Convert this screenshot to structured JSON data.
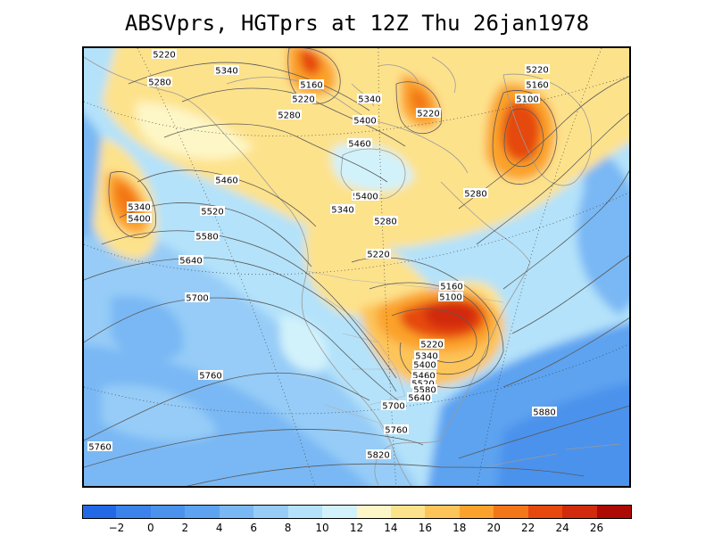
{
  "title": "ABSVprs, HGTprs at 12Z Thu 26jan1978",
  "colors": {
    "bin_neg": "#2369e6",
    "bin_m2": "#3c82eb",
    "bin_0": "#4b92ec",
    "bin_2": "#5da3f0",
    "bin_4": "#79b8f4",
    "bin_6": "#96ccf7",
    "bin_8": "#b4e2fa",
    "bin_10": "#d2f2fb",
    "bin_12": "#fdf6c6",
    "bin_14": "#fde28c",
    "bin_16": "#fdc45a",
    "bin_18": "#fba22c",
    "bin_20": "#f37617",
    "bin_22": "#e6480e",
    "bin_24": "#d22a0c",
    "bin_26": "#ad0a06"
  },
  "colorbar": {
    "ticks": [
      "−2",
      "0",
      "2",
      "4",
      "6",
      "8",
      "10",
      "12",
      "14",
      "16",
      "18",
      "20",
      "22",
      "24",
      "26"
    ]
  },
  "contour_labels": [
    "5220",
    "5340",
    "5280",
    "5160",
    "5220",
    "5280",
    "5340",
    "5400",
    "5220",
    "5220",
    "5160",
    "5100",
    "5460",
    "5400",
    "5460",
    "5340",
    "5400",
    "5400",
    "5520",
    "5340",
    "5280",
    "5280",
    "5580",
    "5640",
    "5220",
    "5160",
    "5100",
    "5700",
    "5220",
    "5340",
    "5400",
    "5460",
    "5520",
    "5580",
    "5640",
    "5760",
    "5700",
    "5760",
    "5880",
    "5760",
    "5820"
  ]
}
